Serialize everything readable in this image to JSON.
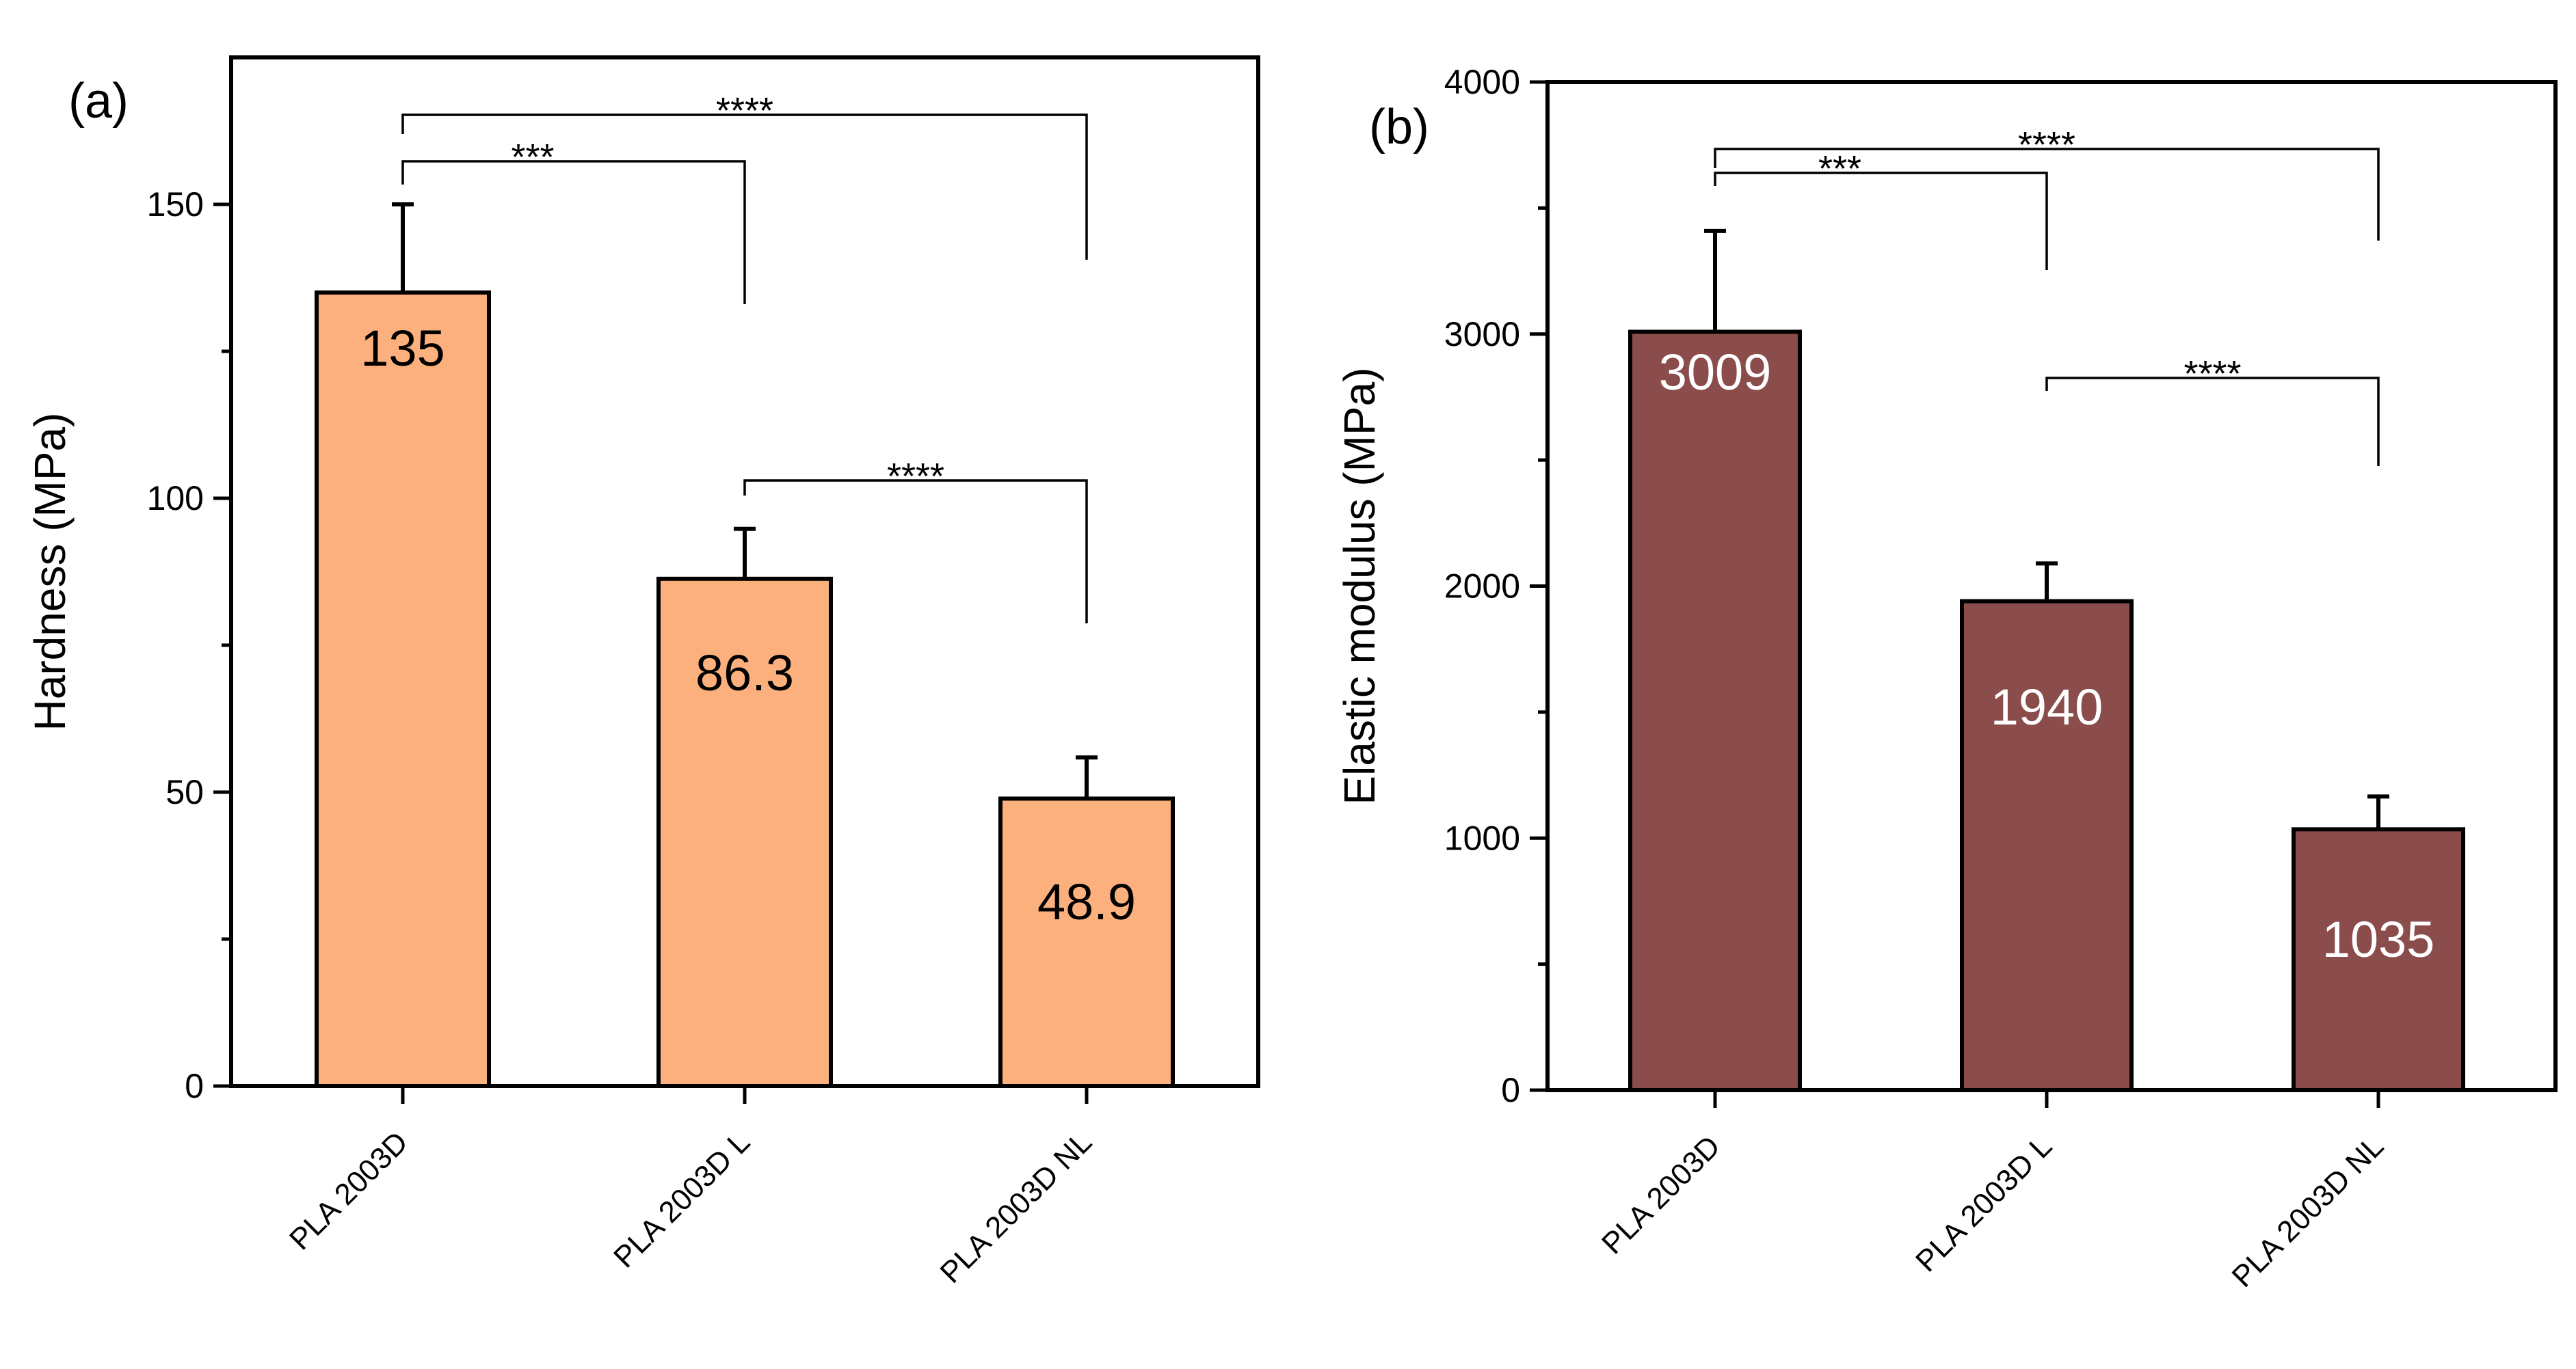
{
  "chart_data": [
    {
      "type": "bar",
      "panel_label": "(a)",
      "ylabel": "Hardness (MPa)",
      "categories": [
        "PLA 2003D",
        "PLA 2003D L",
        "PLA 2003D NL"
      ],
      "values": [
        135,
        86.3,
        48.9
      ],
      "errors": [
        15,
        8.5,
        7
      ],
      "data_labels": [
        "135",
        "86.3",
        "48.9"
      ],
      "ylim": [
        0,
        175
      ],
      "yticks": [
        0,
        50,
        100,
        150
      ],
      "yticks_minor": [
        25,
        75,
        125
      ],
      "bar_color": "#FBB07E",
      "label_color": "#000000",
      "significance": [
        {
          "from": 0,
          "to": 1,
          "label": "***"
        },
        {
          "from": 0,
          "to": 2,
          "label": "****"
        },
        {
          "from": 1,
          "to": 2,
          "label": "****"
        }
      ]
    },
    {
      "type": "bar",
      "panel_label": "(b)",
      "ylabel": "Elastic modulus (MPa)",
      "categories": [
        "PLA 2003D",
        "PLA 2003D L",
        "PLA 2003D NL"
      ],
      "values": [
        3009,
        1940,
        1035
      ],
      "errors": [
        400,
        150,
        130
      ],
      "data_labels": [
        "3009",
        "1940",
        "1035"
      ],
      "ylim": [
        0,
        4000
      ],
      "yticks": [
        0,
        1000,
        2000,
        3000,
        4000
      ],
      "yticks_minor": [
        500,
        1500,
        2500,
        3500
      ],
      "bar_color": "#8B4C4C",
      "label_color": "#FFFFFF",
      "significance": [
        {
          "from": 0,
          "to": 1,
          "label": "***"
        },
        {
          "from": 0,
          "to": 2,
          "label": "****"
        },
        {
          "from": 1,
          "to": 2,
          "label": "****"
        }
      ]
    }
  ]
}
